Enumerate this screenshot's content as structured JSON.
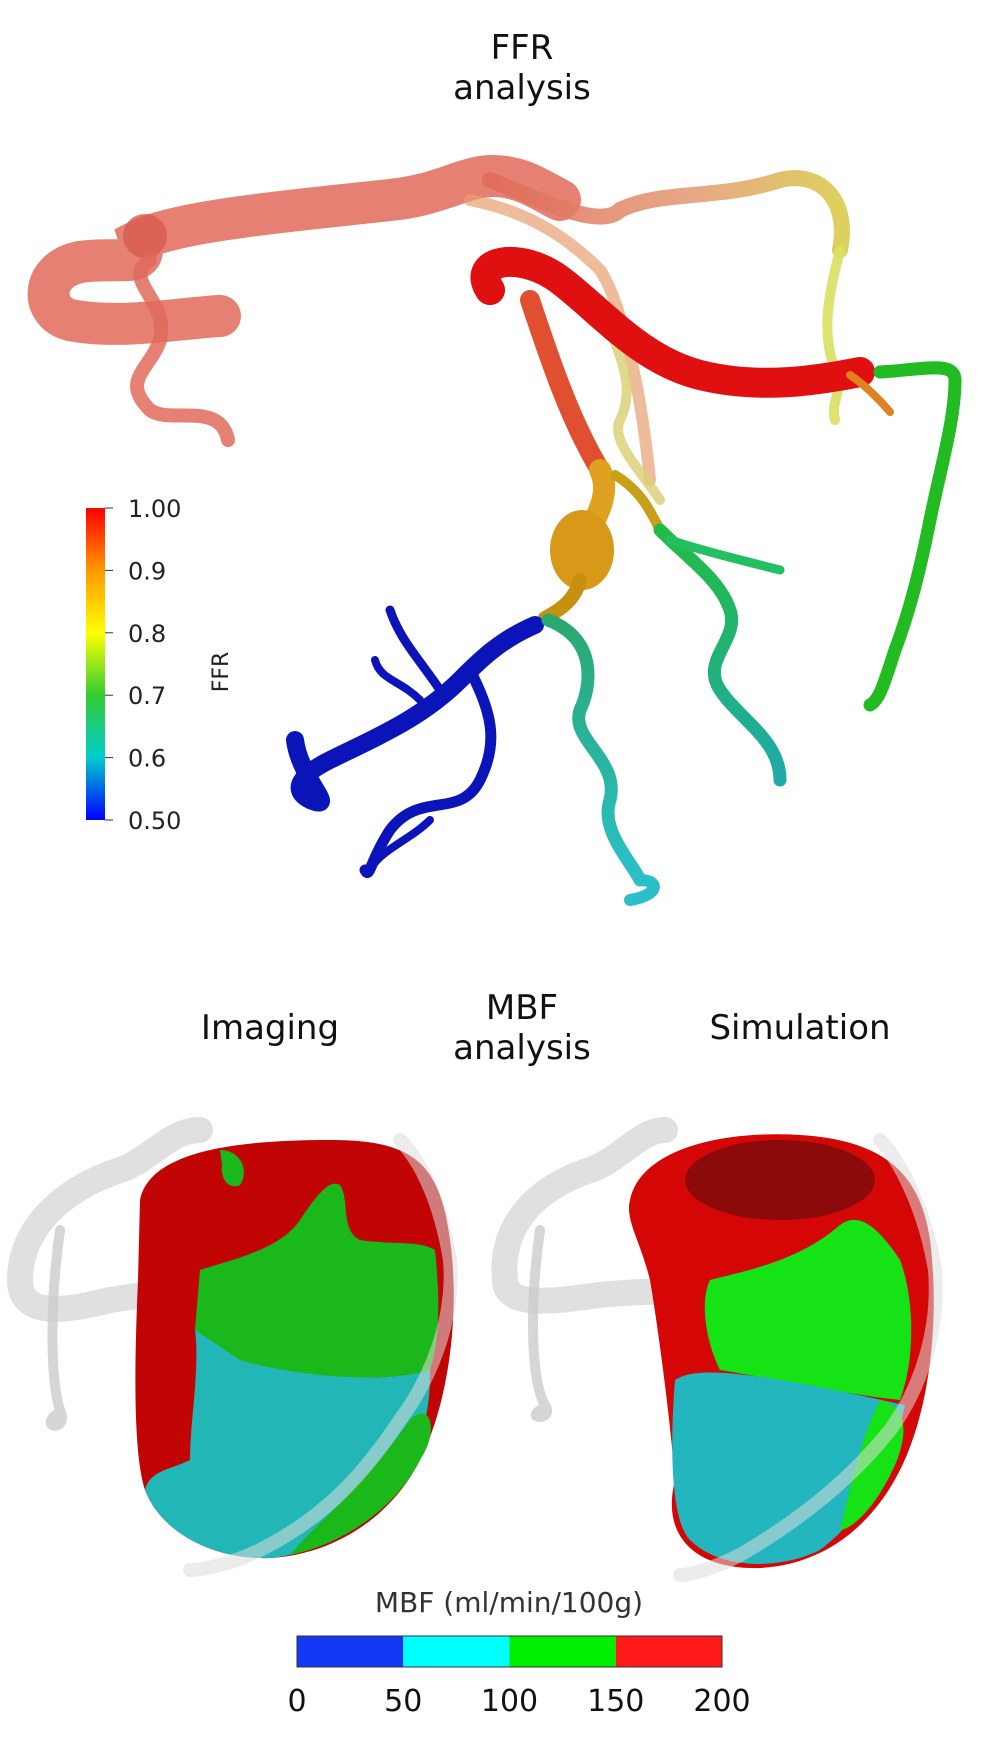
{
  "titles": {
    "ffr": {
      "line1": "FFR",
      "line2": "analysis"
    },
    "imaging": "Imaging",
    "mbf": {
      "line1": "MBF",
      "line2": "analysis"
    },
    "simulation": "Simulation"
  },
  "ffr_colorbar": {
    "label": "FFR",
    "ticks": [
      "1.00",
      "0.9",
      "0.8",
      "0.7",
      "0.6",
      "0.50"
    ],
    "colors": [
      "#ff0000",
      "#ff9900",
      "#ffff00",
      "#33cc33",
      "#00cccc",
      "#0000ff"
    ]
  },
  "mbf_colorbar": {
    "label": "MBF (ml/min/100g)",
    "ticks": [
      "0",
      "50",
      "100",
      "150",
      "200"
    ],
    "segments": [
      "#1436f5",
      "#00ffff",
      "#00ee00",
      "#ff1a1a"
    ]
  },
  "colors": {
    "red": "#e01010",
    "green": "#22cc22",
    "teal": "#2bbcc4",
    "blue": "#0a14b8",
    "orange": "#e89a10",
    "pale_red": "#e06a5a"
  }
}
